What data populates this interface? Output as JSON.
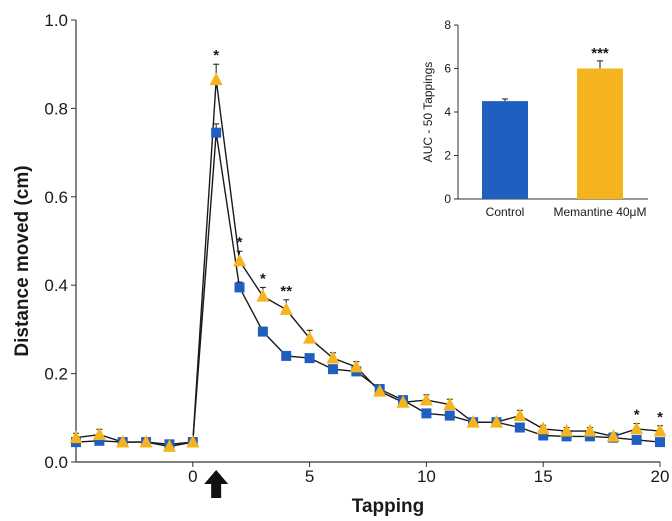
{
  "chart_data": [
    {
      "type": "line",
      "title": "",
      "xlabel": "Tapping",
      "ylabel": "Distance moved (cm)",
      "xlim": [
        -5,
        20
      ],
      "ylim": [
        0,
        1.0
      ],
      "xticks": [
        {
          "value": 0,
          "label": "0"
        },
        {
          "value": 5,
          "label": "5"
        },
        {
          "value": 10,
          "label": "10"
        },
        {
          "value": 15,
          "label": "15"
        },
        {
          "value": 20,
          "label": "20"
        }
      ],
      "yticks": [
        {
          "value": 0,
          "label": "0.0"
        },
        {
          "value": 0.2,
          "label": "0.2"
        },
        {
          "value": 0.4,
          "label": "0.4"
        },
        {
          "value": 0.6,
          "label": "0.6"
        },
        {
          "value": 0.8,
          "label": "0.8"
        },
        {
          "value": 1.0,
          "label": "1.0"
        }
      ],
      "x": [
        -5,
        -4,
        -3,
        -2,
        -1,
        0,
        1,
        2,
        3,
        4,
        5,
        6,
        7,
        8,
        9,
        10,
        11,
        12,
        13,
        14,
        15,
        16,
        17,
        18,
        19,
        20
      ],
      "series": [
        {
          "color": "#1f5fbf",
          "marker": "square",
          "values": [
            0.045,
            0.048,
            0.045,
            0.045,
            0.04,
            0.045,
            0.745,
            0.395,
            0.295,
            0.24,
            0.235,
            0.21,
            0.205,
            0.165,
            0.14,
            0.11,
            0.105,
            0.09,
            0.09,
            0.078,
            0.06,
            0.058,
            0.058,
            0.055,
            0.05,
            0.045
          ],
          "errors": [
            0.005,
            0.008,
            0.005,
            0.005,
            0.005,
            0.008,
            0.02,
            0.012,
            0.01,
            0.008,
            0.008,
            0.008,
            0.008,
            0.01,
            0.008,
            0.008,
            0.008,
            0.006,
            0.006,
            0.006,
            0.005,
            0.005,
            0.005,
            0.005,
            0.005,
            0.005
          ]
        },
        {
          "color": "#f5b41d",
          "marker": "triangle",
          "values": [
            0.055,
            0.062,
            0.045,
            0.045,
            0.035,
            0.045,
            0.865,
            0.455,
            0.375,
            0.345,
            0.28,
            0.235,
            0.215,
            0.16,
            0.135,
            0.14,
            0.13,
            0.09,
            0.09,
            0.105,
            0.075,
            0.07,
            0.07,
            0.058,
            0.075,
            0.07
          ],
          "errors": [
            0.01,
            0.012,
            0.006,
            0.006,
            0.006,
            0.01,
            0.035,
            0.022,
            0.02,
            0.022,
            0.018,
            0.012,
            0.012,
            0.012,
            0.012,
            0.012,
            0.012,
            0.008,
            0.008,
            0.012,
            0.008,
            0.008,
            0.008,
            0.008,
            0.012,
            0.012
          ]
        }
      ],
      "annotations": [
        {
          "x": 1,
          "label": "*"
        },
        {
          "x": 2,
          "label": "*"
        },
        {
          "x": 3,
          "label": "*"
        },
        {
          "x": 4,
          "label": "**"
        },
        {
          "x": 19,
          "label": "*"
        },
        {
          "x": 20,
          "label": "*"
        }
      ],
      "stimulus_marker": {
        "x": 1,
        "shape": "up-arrow",
        "color": "#111111"
      },
      "grid": false,
      "legend": "none"
    },
    {
      "type": "bar",
      "title": "",
      "xlabel": "",
      "ylabel": "AUC - 50 Tappings",
      "ylim": [
        0,
        8
      ],
      "yticks": [
        {
          "value": 0,
          "label": "0"
        },
        {
          "value": 2,
          "label": "2"
        },
        {
          "value": 4,
          "label": "4"
        },
        {
          "value": 6,
          "label": "6"
        },
        {
          "value": 8,
          "label": "8"
        }
      ],
      "categories": [
        "Control",
        "Memantine 40μM"
      ],
      "values": [
        4.5,
        6.0
      ],
      "errors": [
        0.1,
        0.35
      ],
      "colors": [
        "#1f5fbf",
        "#f5b41d"
      ],
      "annotations": [
        {
          "category_index": 1,
          "label": "***"
        }
      ],
      "grid": false
    }
  ]
}
